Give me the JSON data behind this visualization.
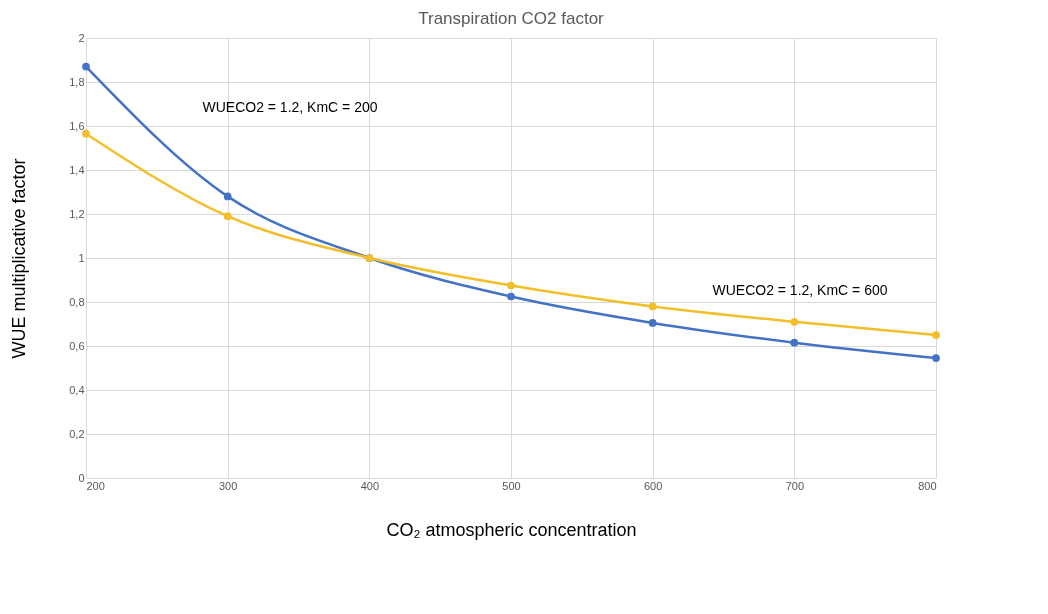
{
  "chart_data": {
    "type": "line",
    "title": "Transpiration CO2 factor",
    "xlabel": "CO₂ atmospheric concentration",
    "ylabel": "WUE multiplicative  factor",
    "x": [
      200,
      300,
      400,
      500,
      600,
      700,
      800
    ],
    "series": [
      {
        "color": "#4472c4",
        "values": [
          1.87,
          1.28,
          1.0,
          0.825,
          0.705,
          0.615,
          0.545
        ]
      },
      {
        "color": "#f2be2a",
        "values": [
          1.565,
          1.19,
          1.0,
          0.875,
          0.78,
          0.71,
          0.65
        ]
      }
    ],
    "xlim": [
      200,
      800
    ],
    "xticks": [
      200,
      300,
      400,
      500,
      600,
      700,
      800
    ],
    "ylim": [
      0,
      2
    ],
    "yticks": [
      0,
      {
        "value": 0.2,
        "label": "0,2"
      },
      {
        "value": 0.4,
        "label": "0,4"
      },
      {
        "value": 0.6,
        "label": "0,6"
      },
      {
        "value": 0.8,
        "label": "0,8"
      },
      1,
      {
        "value": 1.2,
        "label": "1,2"
      },
      {
        "value": 1.4,
        "label": "1,4"
      },
      {
        "value": 1.6,
        "label": "1,6"
      },
      {
        "value": 1.8,
        "label": "1,8"
      },
      2
    ],
    "annotations": [
      "WUECO2 = 1.2, KmC = 200",
      "WUECO2 = 1.2, KmC = 600"
    ],
    "grid": true,
    "marker": "circle",
    "line_style": "solid"
  }
}
